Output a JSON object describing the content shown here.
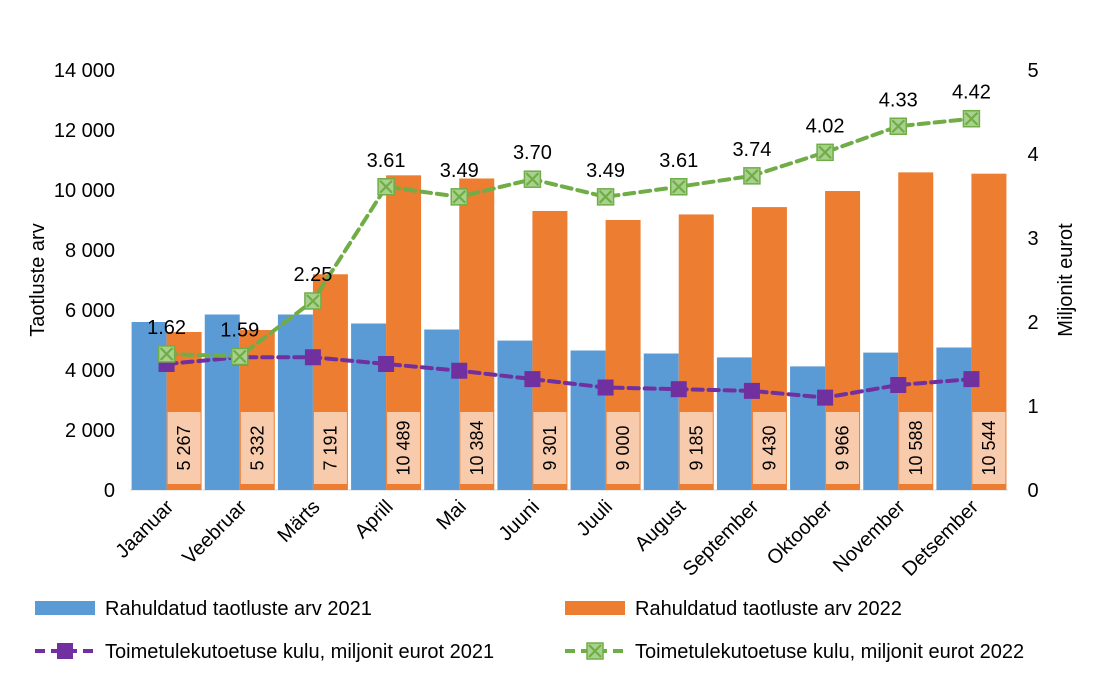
{
  "chart_data": {
    "type": "bar",
    "categories": [
      "Jaanuar",
      "Veebruar",
      "Märts",
      "Aprill",
      "Mai",
      "Juuni",
      "Juuli",
      "August",
      "September",
      "Oktoober",
      "November",
      "Detsember"
    ],
    "series": [
      {
        "name": "Rahuldatud taotluste arv 2021",
        "type": "bar",
        "axis": "left",
        "color": "#5B9BD5",
        "values": [
          5600,
          5850,
          5850,
          5550,
          5350,
          4980,
          4650,
          4550,
          4420,
          4120,
          4580,
          4750
        ]
      },
      {
        "name": "Rahuldatud taotluste arv 2022",
        "type": "bar",
        "axis": "left",
        "color": "#ED7D31",
        "label_bg": "#F8CBAD",
        "values": [
          5267,
          5332,
          7191,
          10489,
          10384,
          9301,
          9000,
          9185,
          9430,
          9966,
          10588,
          10544
        ],
        "labels": [
          "5 267",
          "5 332",
          "7 191",
          "10 489",
          "10 384",
          "9 301",
          "9 000",
          "9 185",
          "9 430",
          "9 966",
          "10 588",
          "10 544"
        ]
      },
      {
        "name": "Toimetulekutoetuse kulu, miljonit eurot 2021",
        "type": "line",
        "axis": "right",
        "color": "#7030A0",
        "marker": "square",
        "values": [
          1.5,
          1.58,
          1.58,
          1.5,
          1.42,
          1.32,
          1.22,
          1.2,
          1.18,
          1.1,
          1.25,
          1.32
        ]
      },
      {
        "name": "Toimetulekutoetuse kulu, miljonit eurot 2022",
        "type": "line",
        "axis": "right",
        "color": "#70AD47",
        "marker": "x-square",
        "values": [
          1.62,
          1.59,
          2.25,
          3.61,
          3.49,
          3.7,
          3.49,
          3.61,
          3.74,
          4.02,
          4.33,
          4.42
        ],
        "labels": [
          "1.62",
          "1.59",
          "2.25",
          "3.61",
          "3.49",
          "3.70",
          "3.49",
          "3.61",
          "3.74",
          "4.02",
          "4.33",
          "4.42"
        ]
      }
    ],
    "ylabel": "Taotluste arv",
    "y2label": "Miljonit eurot",
    "ylim": [
      0,
      14000
    ],
    "y2lim": [
      0,
      5
    ],
    "yticks": [
      "0",
      "2 000",
      "4 000",
      "6 000",
      "8 000",
      "10 000",
      "12 000",
      "14 000"
    ],
    "y2ticks": [
      "0",
      "1",
      "2",
      "3",
      "4",
      "5"
    ],
    "grid": false,
    "legend_position": "bottom"
  }
}
